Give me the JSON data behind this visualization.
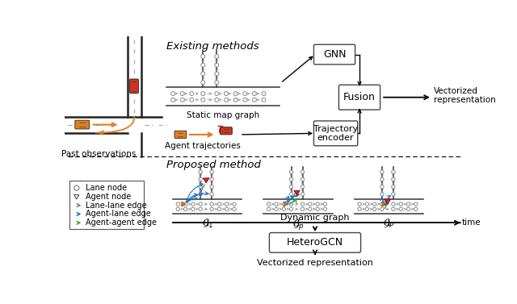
{
  "bg_color": "#ffffff",
  "fig_width": 6.4,
  "fig_height": 3.77,
  "existing_methods_label": "Existing methods",
  "proposed_method_label": "Proposed method",
  "gnn_label": "GNN",
  "fusion_label": "Fusion",
  "trajectory_encoder_label": "Trajectory\nencoder",
  "static_map_graph_label": "Static map graph",
  "agent_trajectories_label": "Agent trajectories",
  "vectorized_repr_label": "Vectorized\nrepresentation",
  "past_obs_label": "Past observations",
  "dynamic_graph_label": "Dynamic graph",
  "time_label": "time",
  "heterogcn_label": "HeteroGCN",
  "vectorized_repr2_label": "Vectorized representation",
  "graph_labels": [
    "$\\mathcal{G}_1$",
    "$\\mathcal{G}_p$",
    "$\\mathcal{G}_P$"
  ],
  "dots_label": "...",
  "lane_node_color": "#888888",
  "lane_edge_color": "#888888",
  "agent_node_color": "#e07820",
  "blue_edge_color": "#1a6fbe",
  "green_edge_color": "#2ca02c",
  "red_agent_color": "#cc2222",
  "car_orange_color": "#e08020",
  "car_red_color": "#cc3322"
}
